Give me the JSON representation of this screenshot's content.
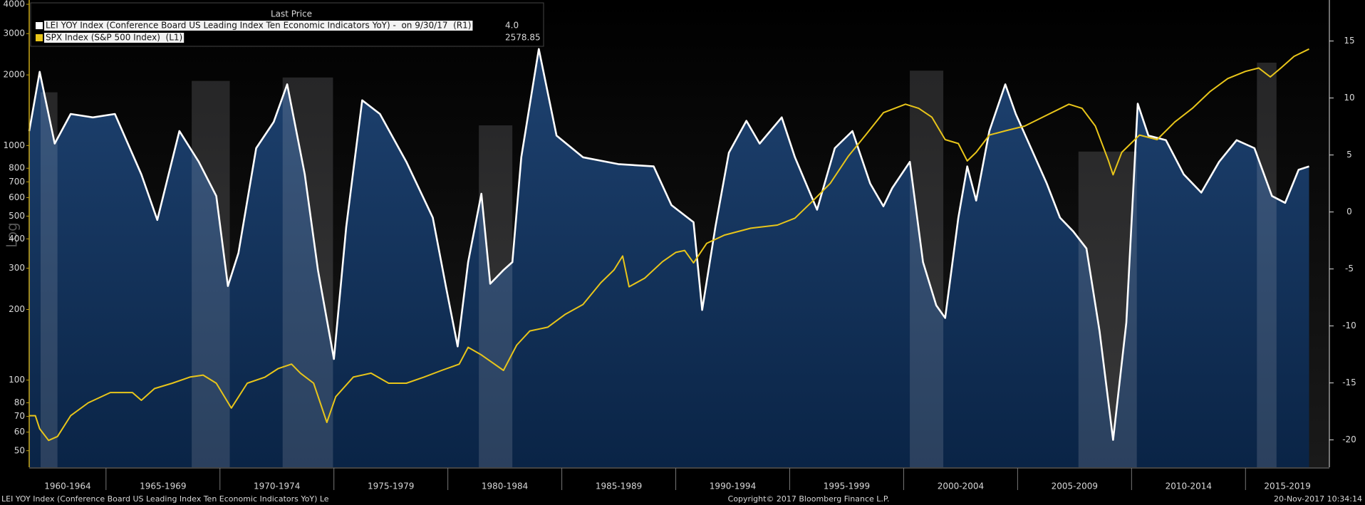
{
  "chart_data": {
    "type": "line",
    "legend_header": "Last Price",
    "y_axis_label": "Log",
    "ylog": true,
    "xlim": [
      1961.63,
      2018.68
    ],
    "ylim": [
      42.5,
      4172
    ],
    "yticks": [
      50,
      60,
      70,
      80,
      100,
      200,
      300,
      400,
      500,
      600,
      700,
      800,
      1000,
      2000,
      3000,
      4000
    ],
    "y2lim": [
      -22.4,
      18.6
    ],
    "y2ticks": [
      -20,
      -15,
      -10,
      -5,
      0,
      5,
      10,
      15
    ],
    "categories": [
      "1960-1964",
      "1965-1969",
      "1970-1974",
      "1975-1979",
      "1980-1984",
      "1985-1989",
      "1990-1994",
      "1995-1999",
      "2000-2004",
      "2005-2009",
      "2010-2014",
      "2015-2019"
    ],
    "xticks": [
      1965,
      1970,
      1975,
      1980,
      1985,
      1990,
      1995,
      2000,
      2005,
      2010,
      2015
    ],
    "shaded_periods": [
      {
        "x0": 1962.13,
        "x1": 1962.87,
        "top": 10.5
      },
      {
        "x0": 1968.76,
        "x1": 1970.43,
        "top": 11.5
      },
      {
        "x0": 1972.75,
        "x1": 1974.96,
        "top": 11.8
      },
      {
        "x0": 1981.36,
        "x1": 1982.83,
        "top": 7.6
      },
      {
        "x0": 2000.27,
        "x1": 2001.74,
        "top": 12.4
      },
      {
        "x0": 2007.67,
        "x1": 2010.23,
        "top": 5.3
      },
      {
        "x0": 2015.5,
        "x1": 2016.36,
        "top": 13.1
      }
    ],
    "series": [
      {
        "name": "LEI YOY Index (Conference Board US Leading Index Ten Economic Indicators YoY) -  on 9/30/17  (R1)",
        "color": "#ffffff",
        "axis": "y2",
        "fill": true,
        "last_price": "4.0",
        "x": [
          1961.63,
          1962.09,
          1962.75,
          1963.45,
          1964.42,
          1965.39,
          1966.55,
          1967.25,
          1968.22,
          1969.07,
          1969.84,
          1970.35,
          1970.81,
          1971.59,
          1972.36,
          1972.95,
          1973.72,
          1974.3,
          1975.0,
          1975.54,
          1976.24,
          1977.02,
          1978.18,
          1979.34,
          1979.92,
          1980.43,
          1980.89,
          1981.47,
          1981.86,
          1982.44,
          1982.83,
          1983.22,
          1983.99,
          1984.77,
          1985.93,
          1987.48,
          1989.03,
          1989.81,
          1990.78,
          1991.16,
          1991.74,
          1992.33,
          1993.1,
          1993.68,
          1994.65,
          1995.23,
          1996.2,
          1996.98,
          1997.75,
          1998.53,
          1999.11,
          1999.5,
          2000.27,
          2000.85,
          2001.43,
          2001.82,
          2002.4,
          2002.79,
          2003.18,
          2003.76,
          2004.46,
          2004.92,
          2005.5,
          2006.28,
          2006.86,
          2007.44,
          2008.02,
          2008.6,
          2009.19,
          2009.77,
          2010.27,
          2010.74,
          2011.51,
          2012.29,
          2013.06,
          2013.84,
          2014.61,
          2015.39,
          2016.16,
          2016.74,
          2017.33,
          2017.79
        ],
        "values": [
          7.1,
          12.3,
          6.0,
          8.6,
          8.3,
          8.6,
          3.3,
          -0.7,
          7.1,
          4.4,
          1.4,
          -6.5,
          -3.6,
          5.6,
          7.9,
          11.2,
          3.3,
          -5.1,
          -12.9,
          -1.3,
          9.8,
          8.6,
          4.4,
          -0.5,
          -6.6,
          -11.8,
          -4.4,
          1.6,
          -6.3,
          -5.1,
          -4.4,
          4.8,
          14.3,
          6.7,
          4.8,
          4.2,
          4.0,
          0.6,
          -0.9,
          -8.6,
          -1.3,
          5.2,
          8.0,
          6.0,
          8.3,
          4.8,
          0.2,
          5.6,
          7.1,
          2.5,
          0.5,
          2.1,
          4.4,
          -4.4,
          -8.2,
          -9.3,
          -0.5,
          4.0,
          1.0,
          7.1,
          11.2,
          8.6,
          6.0,
          2.5,
          -0.5,
          -1.7,
          -3.2,
          -10.5,
          -20.0,
          -9.7,
          9.5,
          6.7,
          6.3,
          3.3,
          1.7,
          4.4,
          6.3,
          5.6,
          1.4,
          0.8,
          3.7,
          4.0
        ]
      },
      {
        "name": "SPX Index (S&P 500 Index)  (L1)",
        "color": "#e8c51a",
        "axis": "y",
        "last_price": "2578.85",
        "x": [
          1961.63,
          1961.9,
          1962.09,
          1962.48,
          1962.87,
          1963.45,
          1964.22,
          1965.19,
          1966.16,
          1966.55,
          1967.13,
          1967.91,
          1968.68,
          1969.26,
          1969.84,
          1970.5,
          1971.2,
          1971.98,
          1972.56,
          1973.14,
          1973.53,
          1974.11,
          1974.69,
          1975.08,
          1975.85,
          1976.63,
          1977.4,
          1978.18,
          1978.95,
          1979.73,
          1980.5,
          1980.89,
          1981.47,
          1982.44,
          1983.02,
          1983.6,
          1984.38,
          1985.16,
          1985.93,
          1986.71,
          1987.29,
          1987.67,
          1987.95,
          1988.64,
          1989.42,
          1990.0,
          1990.39,
          1990.78,
          1991.36,
          1992.13,
          1993.29,
          1994.46,
          1995.23,
          1996.01,
          1996.78,
          1997.56,
          1998.33,
          1999.11,
          2000.08,
          2000.66,
          2001.24,
          2001.82,
          2002.4,
          2002.79,
          2003.18,
          2003.76,
          2004.53,
          2005.31,
          2006.09,
          2007.25,
          2007.83,
          2008.41,
          2008.99,
          2009.19,
          2009.57,
          2010.35,
          2011.12,
          2011.9,
          2012.67,
          2013.45,
          2014.22,
          2015.0,
          2015.58,
          2016.09,
          2016.55,
          2017.13,
          2017.79
        ],
        "values": [
          70.5,
          70.5,
          62,
          55.3,
          57.5,
          70.5,
          80,
          88.5,
          88.5,
          82,
          92,
          97,
          103,
          105,
          97,
          76,
          97,
          103,
          112,
          117,
          107,
          97,
          66,
          85,
          103,
          107,
          97,
          97,
          103,
          110,
          117,
          138,
          128,
          110,
          141,
          162,
          168,
          191,
          210,
          260,
          295,
          338,
          250,
          272,
          320,
          350,
          357,
          316,
          383,
          415,
          444,
          458,
          490,
          580,
          690,
          897,
          1108,
          1380,
          1500,
          1440,
          1320,
          1060,
          1020,
          860,
          935,
          1108,
          1160,
          1210,
          1320,
          1500,
          1440,
          1210,
          860,
          750,
          935,
          1108,
          1060,
          1260,
          1440,
          1700,
          1930,
          2070,
          2140,
          1960,
          2140,
          2400,
          2578.85
        ]
      }
    ],
    "footer_left": "LEI YOY Index (Conference Board US Leading Index Ten Economic Indicators YoY) Le",
    "footer_center": "Copyright© 2017 Bloomberg Finance L.P.",
    "footer_right": "20-Nov-2017 10:34:14"
  }
}
